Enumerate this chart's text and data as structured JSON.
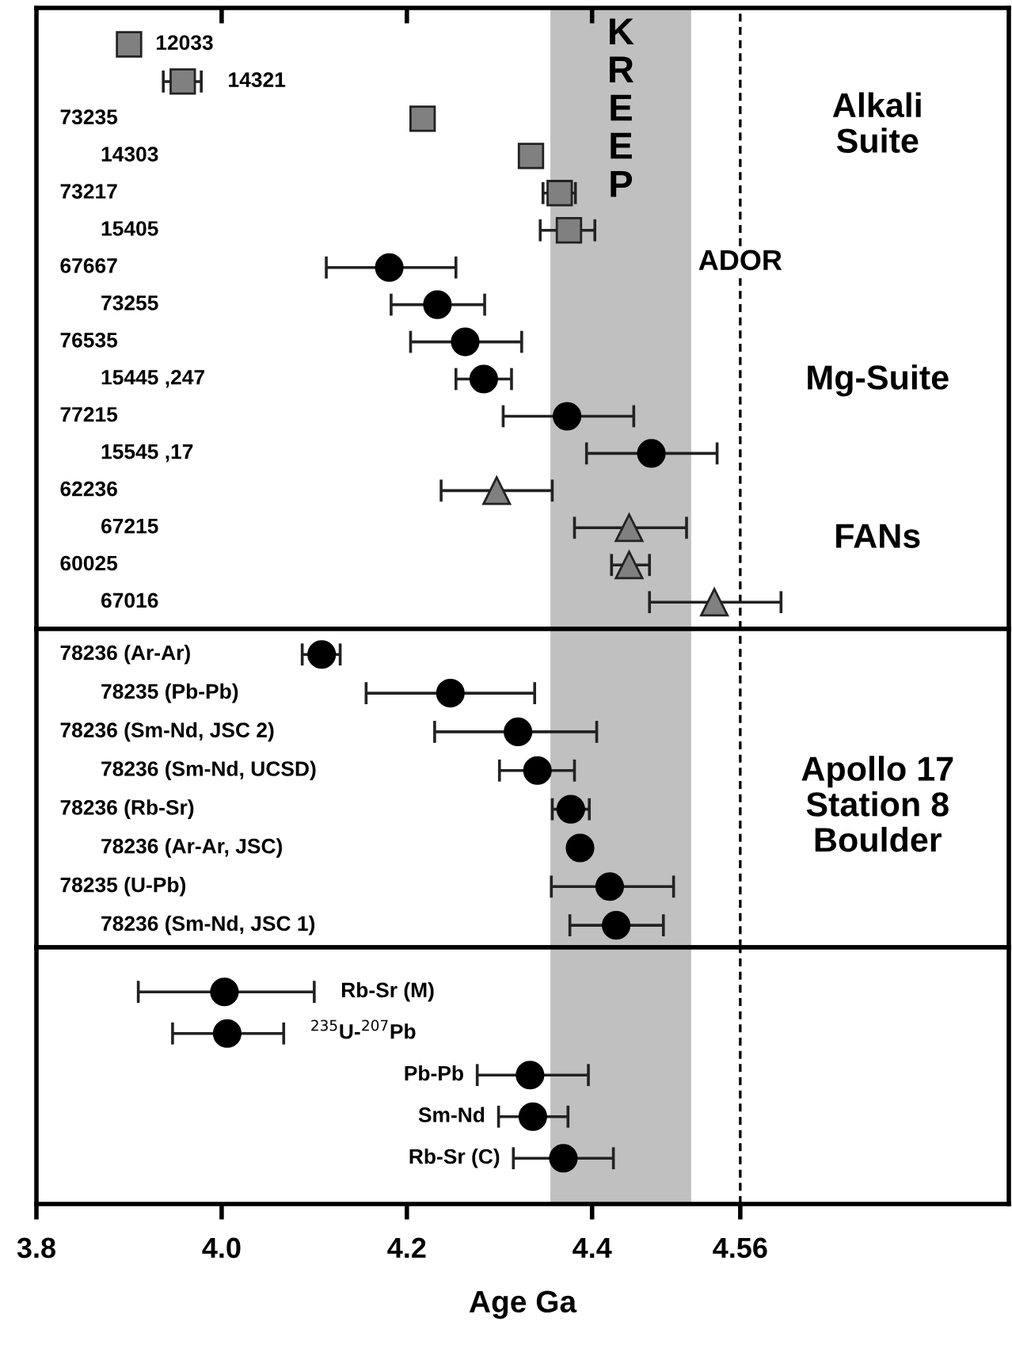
{
  "chart_data": [
    {
      "type": "scatter",
      "orientation": "horizontal",
      "tick_labels": false,
      "grid": false,
      "categories": [
        "12033",
        "14321",
        "73235",
        "14303",
        "73217",
        "15405",
        "67667",
        "73255",
        "76535",
        "15445 ,247",
        "77215",
        "15545 ,17",
        "62236",
        "67215",
        "60025",
        "67016"
      ],
      "series": [
        {
          "color": "#808080",
          "marker": "square",
          "values": [
            3.9,
            3.958,
            4.217,
            4.334,
            4.365,
            4.375,
            null,
            null,
            null,
            null,
            null,
            null,
            null,
            null,
            null,
            null
          ],
          "errors": [
            null,
            [
              3.937,
              3.978
            ],
            null,
            null,
            [
              4.347,
              4.382
            ],
            [
              4.344,
              4.403
            ],
            null,
            null,
            null,
            null,
            null,
            null,
            null,
            null,
            null,
            null
          ]
        },
        {
          "color": "#000000",
          "marker": "circle",
          "values": [
            null,
            null,
            null,
            null,
            null,
            null,
            4.181,
            4.233,
            4.263,
            4.283,
            4.373,
            4.464,
            null,
            null,
            null,
            null
          ],
          "errors": [
            null,
            null,
            null,
            null,
            null,
            null,
            [
              4.113,
              4.253
            ],
            [
              4.183,
              4.284
            ],
            [
              4.204,
              4.324
            ],
            [
              4.253,
              4.313
            ],
            [
              4.304,
              4.445
            ],
            [
              4.394,
              4.535
            ],
            null,
            null,
            null,
            null
          ]
        },
        {
          "color": "#808080",
          "marker": "triangle",
          "values": [
            null,
            null,
            null,
            null,
            null,
            null,
            null,
            null,
            null,
            null,
            null,
            null,
            4.297,
            4.44,
            4.44,
            4.532
          ],
          "errors": [
            null,
            null,
            null,
            null,
            null,
            null,
            null,
            null,
            null,
            null,
            null,
            null,
            [
              4.237,
              4.357
            ],
            [
              4.381,
              4.502
            ],
            [
              4.421,
              4.462
            ],
            [
              4.462,
              4.604
            ]
          ]
        }
      ],
      "xlim": [
        3.8,
        4.85
      ],
      "xticks": [
        {
          "value": 4.0,
          "label": null
        },
        {
          "value": 4.2,
          "label": null
        },
        {
          "value": 4.4,
          "label": null
        }
      ],
      "bands": [
        {
          "axis": "x",
          "from": 4.355,
          "to": 4.507,
          "label": "KREEP",
          "color": "#c0c0c0"
        }
      ],
      "ref_lines": [
        {
          "axis": "x",
          "value": 4.56,
          "label": "ADOR",
          "line_style": "dashed",
          "color": "#000000"
        }
      ],
      "annotations": [
        "Alkali\nSuite",
        "Mg-Suite",
        "FANs"
      ]
    },
    {
      "type": "scatter",
      "orientation": "horizontal",
      "tick_labels": false,
      "grid": false,
      "categories": [
        "78236 (Ar-Ar)",
        "78235 (Pb-Pb)",
        "78236 (Sm-Nd, JSC 2)",
        "78236 (Sm-Nd, UCSD)",
        "78236 (Rb-Sr)",
        "78236 (Ar-Ar, JSC)",
        "78235 (U-Pb)",
        "78236 (Sm-Nd, JSC 1)"
      ],
      "series": [
        {
          "color": "#000000",
          "marker": "circle",
          "values": [
            4.108,
            4.247,
            4.32,
            4.341,
            4.377,
            4.387,
            4.419,
            4.426
          ],
          "errors": [
            [
              4.087,
              4.128
            ],
            [
              4.156,
              4.338
            ],
            [
              4.23,
              4.405
            ],
            [
              4.3,
              4.381
            ],
            [
              4.357,
              4.397
            ],
            null,
            [
              4.356,
              4.488
            ],
            [
              4.376,
              4.477
            ]
          ]
        }
      ],
      "xlim": [
        3.8,
        4.85
      ],
      "bands": [
        {
          "axis": "x",
          "from": 4.355,
          "to": 4.507,
          "color": "#c0c0c0"
        }
      ],
      "ref_lines": [
        {
          "axis": "x",
          "value": 4.56,
          "line_style": "dashed",
          "color": "#000000"
        }
      ],
      "annotations": [
        "Apollo 17\nStation 8\nBoulder"
      ]
    },
    {
      "type": "scatter",
      "orientation": "horizontal",
      "tick_labels": "x",
      "grid": false,
      "xlabel": "Age Ga",
      "categories": [
        "Rb-Sr (M)",
        "$^{235}$U-$^{207}$Pb",
        "Pb-Pb",
        "Sm-Nd",
        "Rb-Sr (C)"
      ],
      "series": [
        {
          "color": "#000000",
          "marker": "circle",
          "values": [
            4.003,
            4.006,
            4.333,
            4.336,
            4.369
          ],
          "errors": [
            [
              3.91,
              4.1
            ],
            [
              3.947,
              4.067
            ],
            [
              4.276,
              4.396
            ],
            [
              4.299,
              4.374
            ],
            [
              4.315,
              4.423
            ]
          ]
        }
      ],
      "xlim": [
        3.8,
        4.85
      ],
      "xticks": [
        3.8,
        {
          "value": 4.0,
          "label": "4.0"
        },
        4.2,
        4.4,
        4.56
      ],
      "bands": [
        {
          "axis": "x",
          "from": 4.355,
          "to": 4.507,
          "color": "#c0c0c0"
        }
      ],
      "ref_lines": [
        {
          "axis": "x",
          "value": 4.56,
          "line_style": "dashed",
          "color": "#000000"
        }
      ]
    }
  ]
}
